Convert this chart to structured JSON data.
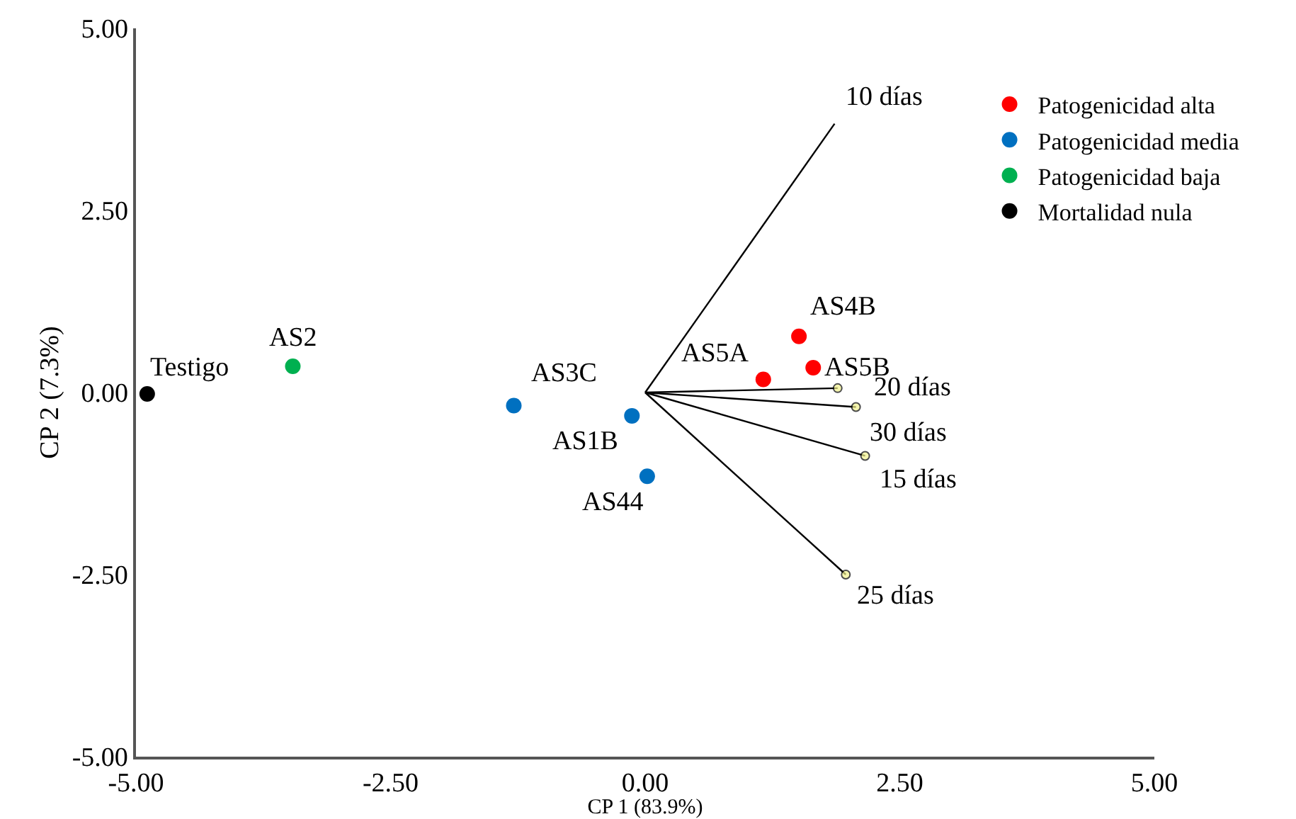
{
  "chart_data": {
    "type": "scatter",
    "xlabel": "CP 1 (83.9%)",
    "ylabel": "CP 2 (7.3%)",
    "xlim": [
      -5,
      5
    ],
    "ylim": [
      -5,
      5
    ],
    "xticks": [
      {
        "value": -5,
        "label": "-5.00"
      },
      {
        "value": -2.5,
        "label": "-2.50"
      },
      {
        "value": 0,
        "label": "0.00"
      },
      {
        "value": 2.5,
        "label": "2.50"
      },
      {
        "value": 5,
        "label": "5.00"
      }
    ],
    "yticks": [
      {
        "value": -5,
        "label": "-5.00"
      },
      {
        "value": -2.5,
        "label": "-2.50"
      },
      {
        "value": 0,
        "label": "0.00"
      },
      {
        "value": 2.5,
        "label": "2.50"
      },
      {
        "value": 5,
        "label": "5.00"
      }
    ],
    "grid": false,
    "legend": "top right",
    "marker": "circle",
    "series": [
      {
        "name": "Patogenicidad alta",
        "color": "#ff0000",
        "x": [
          1.16,
          1.51,
          1.65
        ],
        "values": [
          0.18,
          0.77,
          0.34
        ]
      },
      {
        "name": "Patogenicidad media",
        "color": "#0070c0",
        "x": [
          -1.29,
          -0.13,
          0.02
        ],
        "values": [
          -0.18,
          -0.32,
          -1.15
        ]
      },
      {
        "name": "Patogenicidad baja",
        "color": "#00b050",
        "x": [
          -3.46
        ],
        "values": [
          0.36
        ]
      },
      {
        "name": "Mortalidad nula",
        "color": "#000000",
        "x": [
          -4.89
        ],
        "values": [
          -0.02
        ]
      },
      {
        "type": "line",
        "color": "#000000",
        "marker": "none",
        "x": [
          0,
          1.86
        ],
        "values": [
          0,
          3.69
        ]
      },
      {
        "type": "line",
        "color": "#000000",
        "x": [
          0,
          1.89
        ],
        "values": [
          0,
          0.06
        ]
      },
      {
        "type": "line",
        "color": "#000000",
        "x": [
          0,
          2.07
        ],
        "values": [
          0,
          -0.2
        ]
      },
      {
        "type": "line",
        "color": "#000000",
        "x": [
          0,
          2.16
        ],
        "values": [
          0,
          -0.87
        ]
      },
      {
        "type": "line",
        "color": "#000000",
        "x": [
          0,
          1.97
        ],
        "values": [
          0,
          -2.5
        ]
      }
    ],
    "annotations": [
      {
        "text": "Testigo",
        "x": -4.89,
        "y": -0.02
      },
      {
        "text": "AS2",
        "x": -3.46,
        "y": 0.36
      },
      {
        "text": "AS3C",
        "x": -1.29,
        "y": -0.18
      },
      {
        "text": "AS1B",
        "x": -0.13,
        "y": -0.32
      },
      {
        "text": "AS44",
        "x": 0.02,
        "y": -1.15
      },
      {
        "text": "AS5A",
        "x": 1.16,
        "y": 0.18
      },
      {
        "text": "AS4B",
        "x": 1.51,
        "y": 0.77
      },
      {
        "text": "AS5B",
        "x": 1.65,
        "y": 0.34
      },
      {
        "text": "10 días",
        "x": 1.86,
        "y": 3.69
      },
      {
        "text": "20 días",
        "x": 1.89,
        "y": 0.06
      },
      {
        "text": "30 días",
        "x": 2.07,
        "y": -0.2
      },
      {
        "text": "15 días",
        "x": 2.16,
        "y": -0.87
      },
      {
        "text": "25 días",
        "x": 1.97,
        "y": -2.5
      }
    ]
  }
}
